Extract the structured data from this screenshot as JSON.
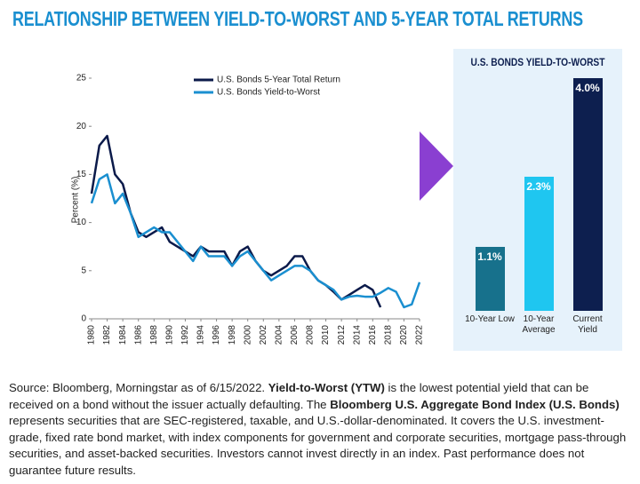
{
  "header": {
    "title": "RELATIONSHIP BETWEEN YIELD-TO-WORST AND 5-YEAR TOTAL RETURNS"
  },
  "chart_data": [
    {
      "type": "line",
      "y_label": "Percent (%)",
      "x": [
        1980,
        1981,
        1982,
        1983,
        1984,
        1985,
        1986,
        1987,
        1988,
        1989,
        1990,
        1991,
        1992,
        1993,
        1994,
        1995,
        1996,
        1997,
        1998,
        1999,
        2000,
        2001,
        2002,
        2003,
        2004,
        2005,
        2006,
        2007,
        2008,
        2009,
        2010,
        2011,
        2012,
        2013,
        2014,
        2015,
        2016,
        2017,
        2018,
        2019,
        2020,
        2021,
        2022
      ],
      "series": [
        {
          "name": "U.S. Bonds 5-Year Total Return",
          "color": "#0b1a4a",
          "values": [
            13,
            18,
            19,
            15,
            14,
            11,
            9,
            8.5,
            9,
            9.5,
            8,
            7.5,
            7,
            6.5,
            7.5,
            7,
            7,
            7,
            5.5,
            7,
            7.5,
            6,
            5,
            4.5,
            5,
            5.5,
            6.5,
            6.5,
            5,
            4,
            3.5,
            2.8,
            2,
            2.5,
            3,
            3.5,
            3,
            1.2,
            null,
            null,
            null,
            null,
            null
          ]
        },
        {
          "name": "U.S. Bonds Yield-to-Worst",
          "color": "#1a8fd0",
          "values": [
            12,
            14.5,
            15,
            12,
            13,
            11,
            8.5,
            9,
            9.5,
            9,
            9,
            8,
            7,
            6,
            7.5,
            6.5,
            6.5,
            6.5,
            5.5,
            6.5,
            7,
            6,
            5,
            4,
            4.5,
            5,
            5.5,
            5.5,
            5,
            4,
            3.5,
            3,
            2,
            2.3,
            2.4,
            2.3,
            2.3,
            2.7,
            3.2,
            2.8,
            1.2,
            1.5,
            3.8
          ]
        }
      ],
      "xlim": [
        1980,
        2022
      ],
      "xticks": [
        1980,
        1982,
        1984,
        1986,
        1988,
        1990,
        1992,
        1994,
        1996,
        1998,
        2000,
        2002,
        2004,
        2006,
        2008,
        2010,
        2012,
        2014,
        2016,
        2018,
        2020,
        2022
      ],
      "ylim": [
        0,
        25
      ],
      "yticks": [
        0,
        5,
        10,
        15,
        20,
        25
      ]
    },
    {
      "type": "bar",
      "title": "U.S. BONDS YIELD-TO-WORST",
      "categories": [
        "10-Year Low",
        "10-Year Average",
        "Current Yield"
      ],
      "values": [
        1.1,
        2.3,
        4.0
      ],
      "value_labels": [
        "1.1%",
        "2.3%",
        "4.0%"
      ],
      "colors": [
        "#17718c",
        "#1fc6f0",
        "#0d1f4f"
      ]
    }
  ],
  "footnote": [
    "Source: Bloomberg, Morningstar as of 6/15/2022. ",
    "Yield-to-Worst (YTW)",
    " is the lowest potential yield that can be received on a bond without the issuer actually defaulting. The ",
    "Bloomberg U.S. Aggregate Bond Index (U.S. Bonds)",
    " represents securities that are SEC-registered, taxable, and U.S.-dollar-denominated. It covers the U.S. investment-grade, fixed rate bond market, with index components for government and corporate securities, mortgage pass-through securities, and asset-backed securities. Investors cannot invest directly in an index. Past performance does not guarantee future results."
  ]
}
